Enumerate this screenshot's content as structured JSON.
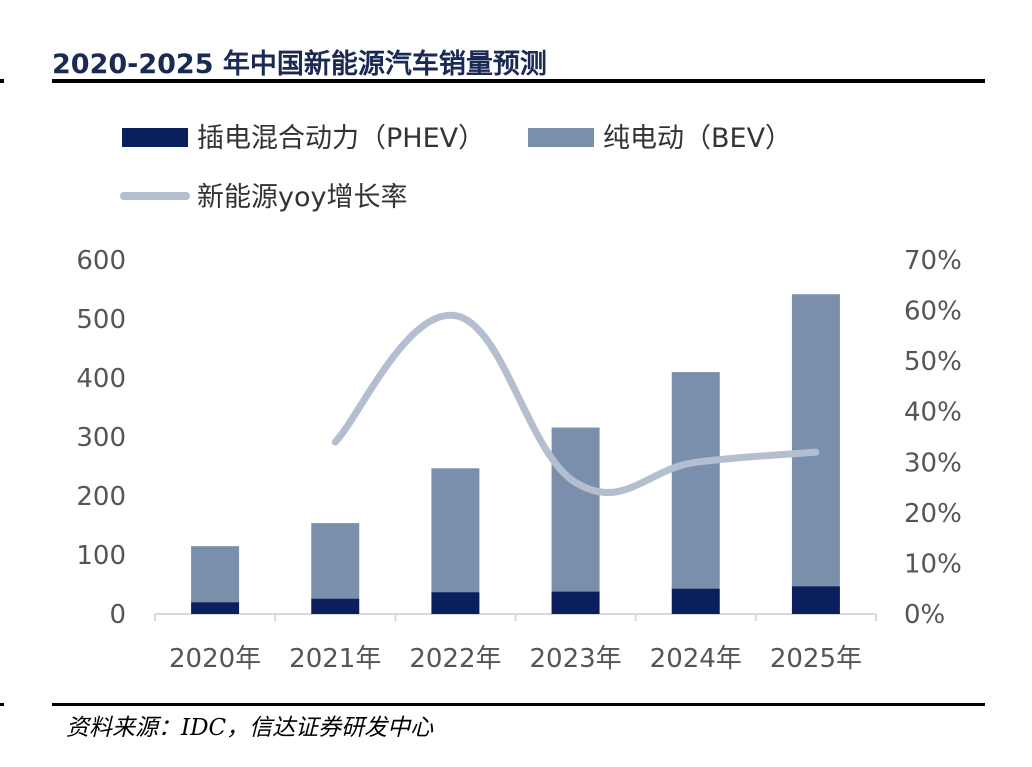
{
  "title": "2020-2025 年中国新能源汽车销量预测",
  "source": "资料来源：IDC，信达证券研发中心",
  "colors": {
    "phev": "#0a1f5c",
    "bev": "#7a8fab",
    "line": "#b3bfd0"
  },
  "chart_data": {
    "type": "bar",
    "stacked": true,
    "categories": [
      "2020年",
      "2021年",
      "2022年",
      "2023年",
      "2024年",
      "2025年"
    ],
    "series": [
      {
        "name": "插电混合动力（PHEV）",
        "type": "bar",
        "axis": "left",
        "values": [
          20,
          26,
          37,
          38,
          43,
          47
        ]
      },
      {
        "name": "纯电动（BEV）",
        "type": "bar",
        "axis": "left",
        "values": [
          95,
          128,
          210,
          278,
          367,
          495
        ]
      },
      {
        "name": "新能源yoy增长率",
        "type": "line",
        "axis": "right",
        "values": [
          null,
          34,
          59,
          26,
          30,
          32
        ]
      }
    ],
    "ylim_left": [
      0,
      600
    ],
    "yticks_left": [
      "0",
      "100",
      "200",
      "300",
      "400",
      "500",
      "600"
    ],
    "ylim_right": [
      0,
      70
    ],
    "yticks_right": [
      "0%",
      "10%",
      "20%",
      "30%",
      "40%",
      "50%",
      "60%",
      "70%"
    ],
    "legend_position": "top-left",
    "grid": false
  }
}
